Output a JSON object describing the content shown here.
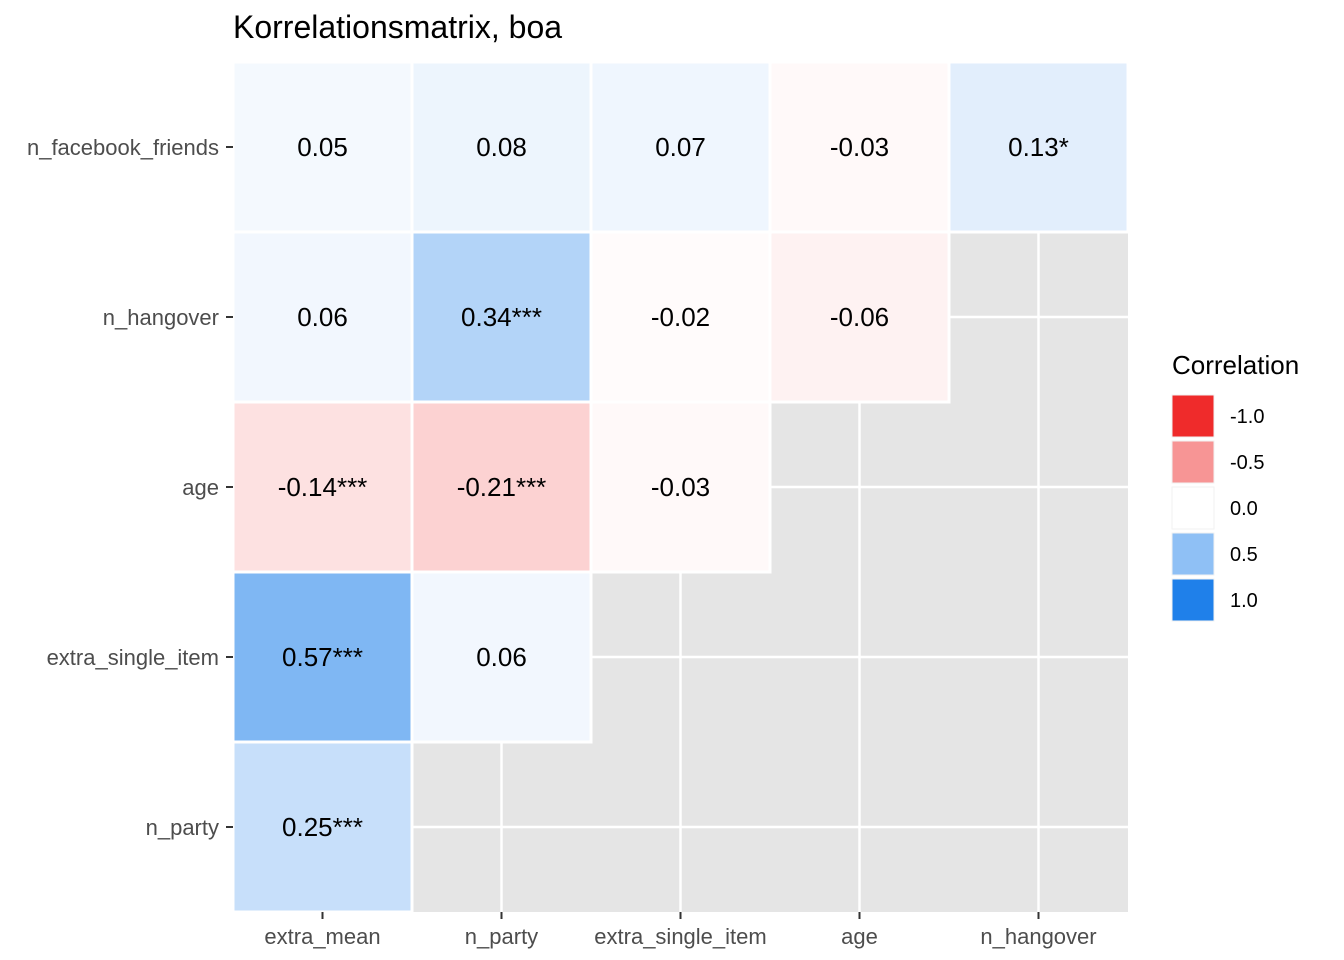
{
  "chart_data": {
    "type": "heatmap",
    "title": "Korrelationsmatrix, boa",
    "x_categories": [
      "extra_mean",
      "n_party",
      "extra_single_item",
      "age",
      "n_hangover"
    ],
    "y_categories": [
      "n_facebook_friends",
      "n_hangover",
      "age",
      "extra_single_item",
      "n_party"
    ],
    "cells": [
      {
        "x": "extra_mean",
        "y": "n_facebook_friends",
        "value": 0.05,
        "label": "0.05"
      },
      {
        "x": "n_party",
        "y": "n_facebook_friends",
        "value": 0.08,
        "label": "0.08"
      },
      {
        "x": "extra_single_item",
        "y": "n_facebook_friends",
        "value": 0.07,
        "label": "0.07"
      },
      {
        "x": "age",
        "y": "n_facebook_friends",
        "value": -0.03,
        "label": "-0.03"
      },
      {
        "x": "n_hangover",
        "y": "n_facebook_friends",
        "value": 0.13,
        "label": "0.13*"
      },
      {
        "x": "extra_mean",
        "y": "n_hangover",
        "value": 0.06,
        "label": "0.06"
      },
      {
        "x": "n_party",
        "y": "n_hangover",
        "value": 0.34,
        "label": "0.34***"
      },
      {
        "x": "extra_single_item",
        "y": "n_hangover",
        "value": -0.02,
        "label": "-0.02"
      },
      {
        "x": "age",
        "y": "n_hangover",
        "value": -0.06,
        "label": "-0.06"
      },
      {
        "x": "extra_mean",
        "y": "age",
        "value": -0.14,
        "label": "-0.14***"
      },
      {
        "x": "n_party",
        "y": "age",
        "value": -0.21,
        "label": "-0.21***"
      },
      {
        "x": "extra_single_item",
        "y": "age",
        "value": -0.03,
        "label": "-0.03"
      },
      {
        "x": "extra_mean",
        "y": "extra_single_item",
        "value": 0.57,
        "label": "0.57***"
      },
      {
        "x": "n_party",
        "y": "extra_single_item",
        "value": 0.06,
        "label": "0.06"
      },
      {
        "x": "extra_mean",
        "y": "n_party",
        "value": 0.25,
        "label": "0.25***"
      }
    ],
    "color_scale": {
      "low": "#ef2b2b",
      "mid": "#ffffff",
      "high": "#1f80ea",
      "limits": [
        -1,
        1
      ]
    },
    "legend": {
      "title": "Correlation",
      "position": "right",
      "entries": [
        {
          "label": "-1.0",
          "value": -1.0
        },
        {
          "label": "-0.5",
          "value": -0.5
        },
        {
          "label": "0.0",
          "value": 0.0
        },
        {
          "label": "0.5",
          "value": 0.5
        },
        {
          "label": "1.0",
          "value": 1.0
        }
      ]
    },
    "panel_background": "#e5e5e5",
    "grid": true
  }
}
